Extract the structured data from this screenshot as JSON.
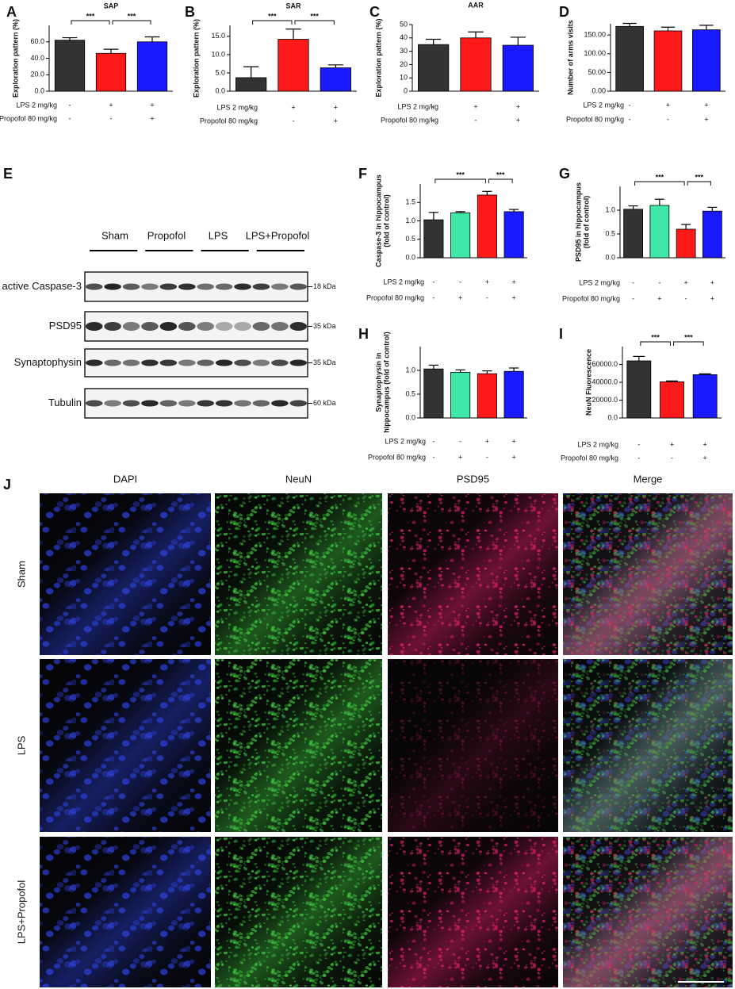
{
  "chart_data": [
    {
      "type": "bar",
      "panel": "A",
      "title": "SAP",
      "y_label": [
        "Exploration pattern  (%)"
      ],
      "values": [
        62,
        46,
        60
      ],
      "errors": [
        3,
        5,
        6
      ],
      "colors": [
        "#333333",
        "#ff1a1a",
        "#1a1aff"
      ],
      "ylim": [
        0,
        80
      ],
      "yticks": [
        {
          "value": 0,
          "label": "0.0"
        },
        {
          "value": 20,
          "label": "20.0"
        },
        {
          "value": 40,
          "label": "40.0"
        },
        {
          "value": 60,
          "label": "60.0"
        }
      ],
      "conditions": [
        {
          "name": "LPS 2 mg/kg",
          "marks": [
            "-",
            "+",
            "+"
          ]
        },
        {
          "name": "Propofol 80 mg/kg",
          "marks": [
            "-",
            "-",
            "+"
          ]
        }
      ],
      "significance": [
        {
          "pair": [
            0,
            1
          ],
          "label": "***"
        },
        {
          "pair": [
            1,
            2
          ],
          "label": "***"
        }
      ]
    },
    {
      "type": "bar",
      "panel": "B",
      "title": "SAR",
      "y_label": [
        "Exploration pattern  (%)"
      ],
      "values": [
        3.7,
        14.2,
        6.4
      ],
      "errors": [
        3,
        2.8,
        0.8
      ],
      "colors": [
        "#333333",
        "#ff1a1a",
        "#1a1aff"
      ],
      "ylim": [
        0,
        18
      ],
      "yticks": [
        {
          "value": 0,
          "label": "0.0"
        },
        {
          "value": 5,
          "label": "5.0"
        },
        {
          "value": 10,
          "label": "10.0"
        },
        {
          "value": 15,
          "label": "15.0"
        }
      ],
      "conditions": [
        {
          "name": "LPS 2 mg/kg",
          "marks": [
            "-",
            "+",
            "+"
          ]
        },
        {
          "name": "Propofol 80 mg/kg",
          "marks": [
            "-",
            "-",
            "+"
          ]
        }
      ],
      "significance": [
        {
          "pair": [
            0,
            1
          ],
          "label": "***"
        },
        {
          "pair": [
            1,
            2
          ],
          "label": "***"
        }
      ]
    },
    {
      "type": "bar",
      "panel": "C",
      "title": "AAR",
      "y_label": [
        "Exploration pattern  (%)"
      ],
      "values": [
        35,
        40,
        34.5
      ],
      "errors": [
        4,
        4.5,
        6
      ],
      "colors": [
        "#333333",
        "#ff1a1a",
        "#1a1aff"
      ],
      "ylim": [
        0,
        50
      ],
      "yticks": [
        0,
        10,
        20,
        30,
        40,
        50
      ],
      "conditions": [
        {
          "name": "LPS 2 mg/kg",
          "marks": [
            "-",
            "+",
            "+"
          ]
        },
        {
          "name": "Propofol 80 mg/kg",
          "marks": [
            "-",
            "-",
            "+"
          ]
        }
      ],
      "significance": []
    },
    {
      "type": "bar",
      "panel": "D",
      "y_label": [
        "Number of arms visits"
      ],
      "values": [
        173,
        161,
        164
      ],
      "errors": [
        8,
        10,
        12
      ],
      "colors": [
        "#333333",
        "#ff1a1a",
        "#1a1aff"
      ],
      "ylim": [
        0,
        180
      ],
      "yticks": [
        {
          "value": 0,
          "label": "0.00"
        },
        {
          "value": 50,
          "label": "50.00"
        },
        {
          "value": 100,
          "label": "100.00"
        },
        {
          "value": 150,
          "label": "150.00"
        }
      ],
      "conditions": [
        {
          "name": "LPS 2 mg/kg",
          "marks": [
            "-",
            "+",
            "+"
          ]
        },
        {
          "name": "Propofol 80 mg/kg",
          "marks": [
            "-",
            "-",
            "+"
          ]
        }
      ],
      "significance": []
    },
    {
      "type": "bar",
      "panel": "F",
      "y_label": [
        "Caspase-3 in hippocampus",
        "(fold of control)"
      ],
      "values": [
        1.03,
        1.22,
        1.7,
        1.25
      ],
      "errors": [
        0.2,
        0.03,
        0.1,
        0.06
      ],
      "colors": [
        "#333333",
        "#3fe8a8",
        "#ff1a1a",
        "#1a1aff"
      ],
      "ylim": [
        0,
        2
      ],
      "yticks": [
        {
          "value": 0,
          "label": "0.0"
        },
        {
          "value": 0.5,
          "label": "0.5"
        },
        {
          "value": 1,
          "label": "1.0"
        },
        {
          "value": 1.5,
          "label": "1.5"
        }
      ],
      "conditions": [
        {
          "name": "LPS 2 mg/kg",
          "marks": [
            "-",
            "-",
            "+",
            "+"
          ]
        },
        {
          "name": "Propofol 80 mg/kg",
          "marks": [
            "-",
            "+",
            "-",
            "+"
          ]
        }
      ],
      "significance": [
        {
          "pair": [
            0,
            2
          ],
          "label": "***"
        },
        {
          "pair": [
            2,
            3
          ],
          "label": "***"
        }
      ]
    },
    {
      "type": "bar",
      "panel": "G",
      "y_label": [
        "PSD95 in hippocampus",
        "(fold of control)"
      ],
      "values": [
        1.02,
        1.1,
        0.6,
        0.98
      ],
      "errors": [
        0.07,
        0.13,
        0.1,
        0.08
      ],
      "colors": [
        "#333333",
        "#3fe8a8",
        "#ff1a1a",
        "#1a1aff"
      ],
      "ylim": [
        0,
        1.5
      ],
      "yticks": [
        {
          "value": 0,
          "label": "0.0"
        },
        0.5,
        {
          "value": 1,
          "label": "1.0"
        }
      ],
      "conditions": [
        {
          "name": "LPS 2 mg/kg",
          "marks": [
            "-",
            "-",
            "+",
            "+"
          ]
        },
        {
          "name": "Propofol 80 mg/kg",
          "marks": [
            "-",
            "+",
            "-",
            "+"
          ]
        }
      ],
      "significance": [
        {
          "pair": [
            0,
            2
          ],
          "label": "***"
        },
        {
          "pair": [
            2,
            3
          ],
          "label": "***"
        }
      ]
    },
    {
      "type": "bar",
      "panel": "H",
      "y_label": [
        "Synaptophysin in",
        "hippocampus (fold of control)"
      ],
      "values": [
        1.03,
        0.96,
        0.93,
        0.98
      ],
      "errors": [
        0.08,
        0.05,
        0.06,
        0.07
      ],
      "colors": [
        "#333333",
        "#3fe8a8",
        "#ff1a1a",
        "#1a1aff"
      ],
      "ylim": [
        0,
        1.5
      ],
      "yticks": [
        {
          "value": 0,
          "label": "0.0"
        },
        0.5,
        {
          "value": 1,
          "label": "1.0"
        }
      ],
      "conditions": [
        {
          "name": "LPS 2 mg/kg",
          "marks": [
            "-",
            "-",
            "+",
            "+"
          ]
        },
        {
          "name": "Propofol 80 mg/kg",
          "marks": [
            "-",
            "+",
            "-",
            "+"
          ]
        }
      ],
      "significance": []
    },
    {
      "type": "bar",
      "panel": "I",
      "y_label": [
        "NeuN  Fluorescence"
      ],
      "values": [
        64000,
        40500,
        48500
      ],
      "errors": [
        5000,
        1000,
        1000
      ],
      "colors": [
        "#333333",
        "#ff1a1a",
        "#1a1aff"
      ],
      "ylim": [
        0,
        80000
      ],
      "yticks": [
        {
          "value": 0,
          "label": "0.0"
        },
        {
          "value": 20000,
          "label": "20000.0"
        },
        {
          "value": 40000,
          "label": "40000.0"
        },
        {
          "value": 60000,
          "label": "60000.0"
        }
      ],
      "conditions": [
        {
          "name": "LPS 2 mg/kg",
          "marks": [
            "-",
            "+",
            "+"
          ]
        },
        {
          "name": "Propofol 80 mg/kg",
          "marks": [
            "-",
            "-",
            "+"
          ]
        }
      ],
      "significance": [
        {
          "pair": [
            0,
            1
          ],
          "label": "***"
        },
        {
          "pair": [
            1,
            2
          ],
          "label": "***"
        }
      ]
    }
  ],
  "blot": {
    "panel": "E",
    "groups": [
      "Sham",
      "Propofol",
      "LPS",
      "LPS+Propofol"
    ],
    "rows": [
      {
        "name": "active Caspase-3",
        "size": "18 kDa"
      },
      {
        "name": "PSD95",
        "size": "35 kDa"
      },
      {
        "name": "Synaptophysin",
        "size": "35 kDa"
      },
      {
        "name": "Tubulin",
        "size": "60 kDa"
      }
    ]
  },
  "images": {
    "panel": "J",
    "channels": [
      {
        "name": "DAPI",
        "color": "#2b3fd6"
      },
      {
        "name": "NeuN",
        "color": "#3cbf3c"
      },
      {
        "name": "PSD95",
        "color": "#e8206e"
      },
      {
        "name": "Merge",
        "color": "#333333"
      }
    ],
    "groups": [
      "Sham",
      "LPS",
      "LPS+Propofol"
    ]
  }
}
